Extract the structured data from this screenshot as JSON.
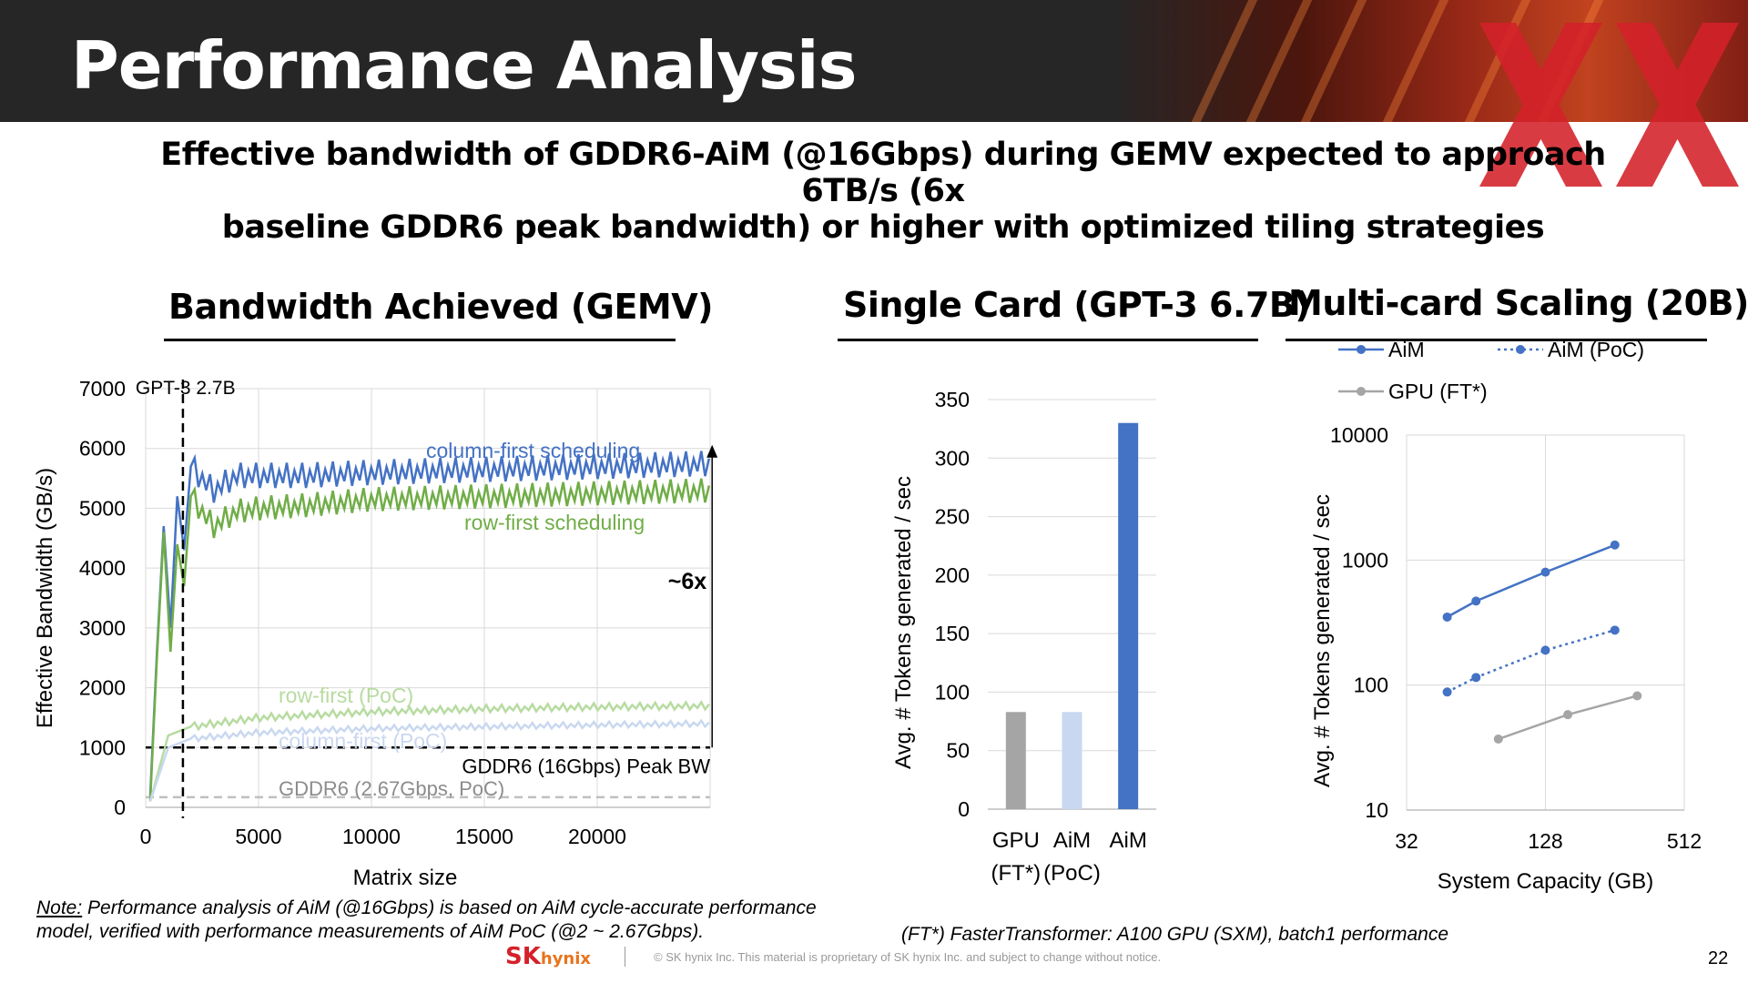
{
  "page": {
    "title": "Performance Analysis",
    "subtitle_line1": "Effective bandwidth of GDDR6-AiM (@16Gbps) during GEMV expected to approach 6TB/s (6x",
    "subtitle_line2": "baseline GDDR6 peak bandwidth) or higher with optimized tiling strategies",
    "section1": "Bandwidth Achieved (GEMV)",
    "section2": "Single Card (GPT-3 6.7B)",
    "section3": "Multi-card Scaling (20B)",
    "note_label": "Note:",
    "note_line1": " Performance analysis of AiM (@16Gbps) is based on AiM cycle-accurate performance",
    "note_line2": "model, verified with performance measurements of AiM PoC (@2 ~ 2.67Gbps).",
    "ft_note": "(FT*) FasterTransformer: A100 GPU (SXM), batch1 performance",
    "footer_logo_sk": "SK",
    "footer_logo_hynix": "hynix",
    "footer_text": "© SK hynix Inc. This material is proprietary of SK hynix Inc. and subject to change without notice.",
    "page_number": "22",
    "colors": {
      "header_bg": "#262626",
      "aim_blue": "#4472c4",
      "poc_light_blue": "#c9d8f0",
      "gpu_gray": "#a5a5a5",
      "green": "#70ad47",
      "light_green": "#b7dba0",
      "watermark_red": "#d4212a"
    }
  },
  "chart_data": [
    {
      "type": "line",
      "title": "Bandwidth Achieved (GEMV)",
      "xlabel": "Matrix  size",
      "ylabel": "Effective Bandwidth (GB/s)",
      "xlim": [
        0,
        25000
      ],
      "ylim": [
        0,
        7000
      ],
      "x_ticks": [
        0,
        5000,
        10000,
        15000,
        20000
      ],
      "y_ticks": [
        0,
        1000,
        2000,
        3000,
        4000,
        5000,
        6000,
        7000
      ],
      "grid": true,
      "series": [
        {
          "name": "column-first scheduling",
          "color": "#4472c4",
          "x": [
            200,
            500,
            800,
            1100,
            1400,
            1700,
            2000,
            3000,
            4000,
            5000,
            7000,
            10000,
            15000,
            20000,
            25000
          ],
          "y": [
            200,
            2600,
            4700,
            3000,
            5200,
            4300,
            5700,
            5300,
            5550,
            5550,
            5550,
            5600,
            5650,
            5700,
            5750
          ],
          "sawtooth_amplitude": 420
        },
        {
          "name": "row-first scheduling",
          "color": "#70ad47",
          "x": [
            200,
            500,
            800,
            1100,
            1400,
            1700,
            2000,
            3000,
            4000,
            5000,
            7000,
            10000,
            15000,
            20000,
            25000
          ],
          "y": [
            100,
            2500,
            4600,
            2600,
            4400,
            3700,
            5200,
            4700,
            4950,
            5000,
            5050,
            5150,
            5200,
            5250,
            5300
          ],
          "sawtooth_amplitude": 400
        },
        {
          "name": "row-first (PoC)",
          "color": "#b7dba0",
          "x": [
            200,
            1000,
            2000,
            5000,
            10000,
            15000,
            20000,
            25000
          ],
          "y": [
            100,
            1200,
            1350,
            1500,
            1600,
            1650,
            1680,
            1700
          ],
          "sawtooth_amplitude": 120
        },
        {
          "name": "column-first (PoC)",
          "color": "#c9d8f0",
          "x": [
            200,
            1000,
            2000,
            5000,
            10000,
            15000,
            20000,
            25000
          ],
          "y": [
            100,
            1000,
            1150,
            1250,
            1320,
            1350,
            1380,
            1400
          ],
          "sawtooth_amplitude": 100
        }
      ],
      "reference_lines": [
        {
          "label": "GDDR6 (16Gbps) Peak BW",
          "y": 1000,
          "style": "dashed",
          "color": "#000000"
        },
        {
          "label": "GDDR6 (2.67Gbps, PoC)",
          "y": 170,
          "style": "dashed",
          "color": "#bfbfbf"
        }
      ],
      "vertical_marker": {
        "label": "GPT-3 2.7B",
        "x": 1650
      },
      "annotation": {
        "label": "~6x",
        "x": 24000,
        "y_from": 1000,
        "y_to": 6000
      }
    },
    {
      "type": "bar",
      "title": "Single Card (GPT-3 6.7B)",
      "ylabel": "Avg. # Tokens generated / sec",
      "ylim": [
        0,
        350
      ],
      "y_ticks": [
        0,
        50,
        100,
        150,
        200,
        250,
        300,
        350
      ],
      "grid": true,
      "categories": [
        [
          "GPU",
          "(FT*)"
        ],
        [
          "AiM",
          "(PoC)"
        ],
        [
          "AiM",
          ""
        ]
      ],
      "values": [
        83,
        83,
        330
      ],
      "colors": [
        "#a5a5a5",
        "#c9d8f0",
        "#4472c4"
      ]
    },
    {
      "type": "line",
      "title": "Multi-card Scaling (20B)",
      "ylabel": "Avg. # Tokens generated / sec",
      "xlabel": "System Capacity (GB)",
      "x_scale": "log2",
      "y_scale": "log10",
      "xlim": [
        32,
        512
      ],
      "ylim": [
        10,
        10000
      ],
      "x_ticks": [
        32,
        128,
        512
      ],
      "y_ticks": [
        10,
        100,
        1000,
        10000
      ],
      "grid": true,
      "legend_position": "top",
      "series": [
        {
          "name": "AiM",
          "color": "#4472c4",
          "style": "solid",
          "x": [
            48,
            64,
            128,
            256
          ],
          "y": [
            350,
            470,
            800,
            1320
          ]
        },
        {
          "name": "AiM (PoC)",
          "color": "#4472c4",
          "style": "dotted",
          "x": [
            48,
            64,
            128,
            256
          ],
          "y": [
            88,
            115,
            190,
            275
          ]
        },
        {
          "name": "GPU (FT*)",
          "color": "#a5a5a5",
          "style": "solid",
          "x": [
            80,
            160,
            320
          ],
          "y": [
            37,
            58,
            82
          ]
        }
      ]
    }
  ]
}
